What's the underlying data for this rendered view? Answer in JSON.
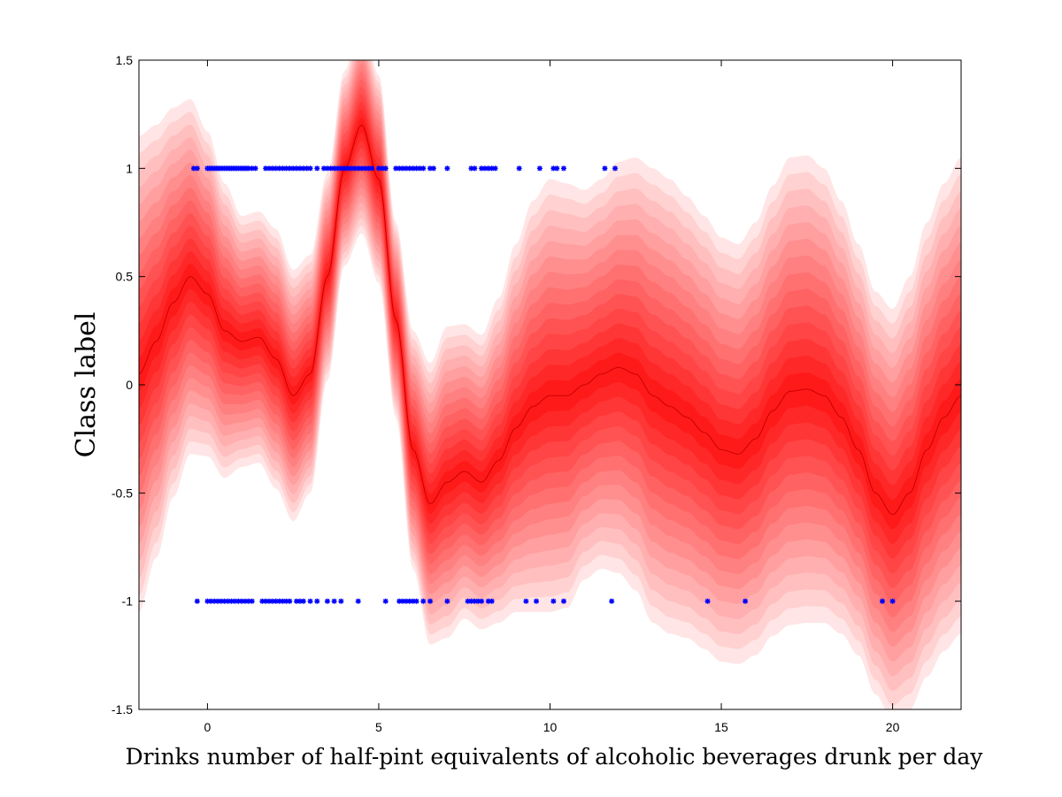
{
  "chart_data": {
    "type": "area",
    "xlabel": "Drinks number of half-pint equivalents of alcoholic beverages drunk per day",
    "ylabel": "Class label",
    "xlim": [
      -2,
      22
    ],
    "ylim": [
      -1.5,
      1.5
    ],
    "x_ticks": [
      0,
      5,
      10,
      15,
      20
    ],
    "x_tick_labels": [
      "0",
      "5",
      "10",
      "15",
      "20"
    ],
    "y_ticks": [
      -1.5,
      -1,
      -0.5,
      0,
      0.5,
      1,
      1.5
    ],
    "y_tick_labels": [
      "-1.5",
      "-1",
      "-0.5",
      "0",
      "0.5",
      "1",
      "1.5"
    ],
    "grid": false,
    "colors": {
      "band_light": "#ffe5e5",
      "band_dark": "#ff1a1a",
      "points": "#0000ff",
      "mean_line": "#cc0000"
    },
    "predictive_mean": {
      "x": [
        -2,
        -1.5,
        -1,
        -0.5,
        0,
        0.5,
        1,
        1.5,
        2,
        2.5,
        3,
        3.5,
        4,
        4.5,
        5,
        5.5,
        6,
        6.5,
        7,
        7.5,
        8,
        8.5,
        9,
        9.5,
        10,
        10.5,
        11,
        11.5,
        12,
        12.5,
        13,
        13.5,
        14,
        14.5,
        15,
        15.5,
        16,
        16.5,
        17,
        17.5,
        18,
        18.5,
        19,
        19.5,
        20,
        20.5,
        21,
        21.5,
        22
      ],
      "y": [
        0.05,
        0.2,
        0.38,
        0.5,
        0.42,
        0.25,
        0.2,
        0.22,
        0.12,
        -0.05,
        0.05,
        0.5,
        1.0,
        1.2,
        0.95,
        0.3,
        -0.3,
        -0.55,
        -0.45,
        -0.4,
        -0.45,
        -0.35,
        -0.2,
        -0.1,
        -0.05,
        -0.05,
        0.0,
        0.05,
        0.08,
        0.05,
        -0.05,
        -0.1,
        -0.15,
        -0.22,
        -0.3,
        -0.32,
        -0.25,
        -0.12,
        -0.03,
        -0.02,
        -0.05,
        -0.15,
        -0.3,
        -0.5,
        -0.6,
        -0.5,
        -0.3,
        -0.15,
        -0.05
      ]
    },
    "band_halfwidths": {
      "x": [
        -2,
        -1.5,
        -1,
        -0.5,
        0,
        0.5,
        1,
        1.5,
        2,
        2.5,
        3,
        3.5,
        4,
        4.5,
        5,
        5.5,
        6,
        6.5,
        7,
        7.5,
        8,
        8.5,
        9,
        9.5,
        10,
        10.5,
        11,
        11.5,
        12,
        12.5,
        13,
        13.5,
        14,
        14.5,
        15,
        15.5,
        16,
        16.5,
        17,
        17.5,
        18,
        18.5,
        19,
        19.5,
        20,
        20.5,
        21,
        21.5,
        22
      ],
      "w": [
        1.1,
        1.0,
        0.9,
        0.82,
        0.75,
        0.68,
        0.58,
        0.58,
        0.6,
        0.58,
        0.55,
        0.48,
        0.45,
        0.5,
        0.48,
        0.45,
        0.55,
        0.65,
        0.72,
        0.68,
        0.68,
        0.75,
        0.85,
        0.95,
        1.0,
        0.98,
        0.9,
        0.9,
        0.95,
        1.0,
        1.05,
        1.05,
        1.02,
        1.0,
        0.98,
        0.97,
        1.0,
        1.04,
        1.08,
        1.08,
        1.05,
        1.0,
        0.95,
        0.93,
        0.95,
        1.0,
        1.05,
        1.08,
        1.1
      ]
    },
    "points_class_pos": {
      "y": 1,
      "x": [
        -0.4,
        -0.3,
        0.0,
        0.05,
        0.1,
        0.15,
        0.2,
        0.25,
        0.3,
        0.35,
        0.4,
        0.45,
        0.5,
        0.55,
        0.6,
        0.65,
        0.7,
        0.75,
        0.8,
        0.85,
        0.9,
        0.95,
        1.0,
        1.05,
        1.1,
        1.15,
        1.2,
        1.3,
        1.4,
        1.7,
        1.8,
        1.9,
        2.0,
        2.1,
        2.2,
        2.3,
        2.4,
        2.5,
        2.6,
        2.7,
        2.8,
        2.9,
        3.0,
        3.2,
        3.4,
        3.5,
        3.6,
        3.7,
        3.8,
        3.9,
        4.0,
        4.1,
        4.2,
        4.3,
        4.4,
        4.5,
        4.6,
        4.7,
        4.8,
        5.0,
        5.1,
        5.2,
        5.5,
        5.6,
        5.7,
        5.8,
        5.9,
        6.0,
        6.1,
        6.2,
        6.3,
        6.5,
        6.6,
        7.0,
        7.7,
        7.8,
        8.0,
        8.1,
        8.2,
        8.3,
        8.4,
        9.1,
        9.7,
        10.1,
        10.2,
        10.4,
        11.6,
        11.9
      ]
    },
    "points_class_neg": {
      "y": -1,
      "x": [
        -0.3,
        0.0,
        0.1,
        0.2,
        0.3,
        0.4,
        0.5,
        0.6,
        0.7,
        0.8,
        0.9,
        1.0,
        1.1,
        1.2,
        1.3,
        1.6,
        1.7,
        1.8,
        1.9,
        2.0,
        2.1,
        2.2,
        2.3,
        2.4,
        2.6,
        2.7,
        2.8,
        3.0,
        3.2,
        3.5,
        3.7,
        3.9,
        4.4,
        5.2,
        5.6,
        5.7,
        5.8,
        5.9,
        6.0,
        6.1,
        6.3,
        6.5,
        7.0,
        7.6,
        7.7,
        7.8,
        7.9,
        8.0,
        8.2,
        8.3,
        9.3,
        9.6,
        10.1,
        10.4,
        11.8,
        14.6,
        15.7,
        19.7,
        20.0
      ]
    }
  }
}
